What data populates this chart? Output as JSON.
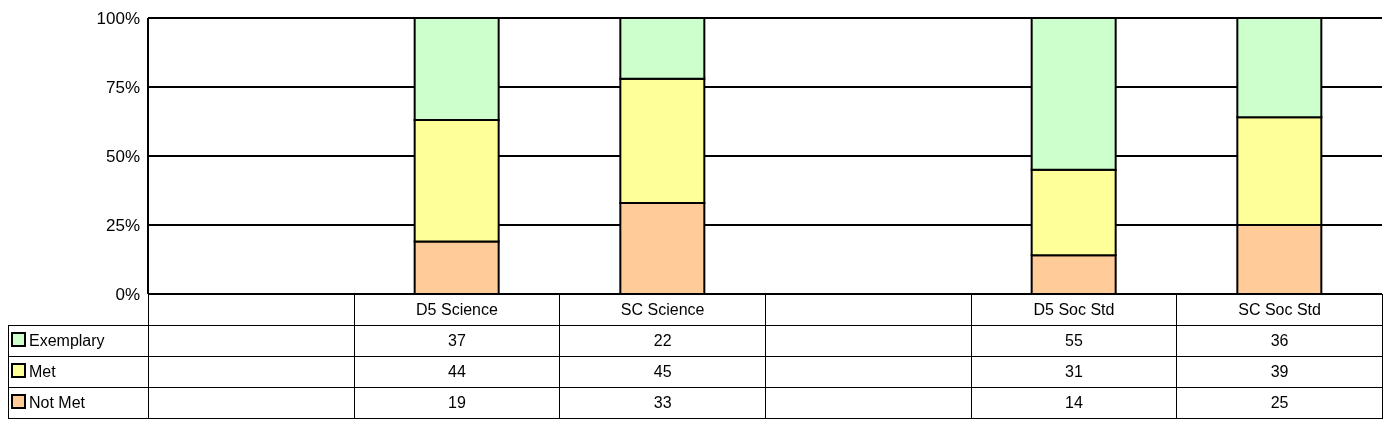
{
  "chart_data": {
    "type": "bar",
    "stacked": true,
    "categories": [
      null,
      "D5 Science",
      "SC Science",
      null,
      "D5 Soc Std",
      "SC Soc Std"
    ],
    "series": [
      {
        "name": "Not Met",
        "color": "#ffcc99",
        "values": [
          null,
          19,
          33,
          null,
          14,
          25
        ]
      },
      {
        "name": "Met",
        "color": "#ffff99",
        "values": [
          null,
          44,
          45,
          null,
          31,
          39
        ]
      },
      {
        "name": "Exemplary",
        "color": "#ccffcc",
        "values": [
          null,
          37,
          22,
          null,
          55,
          36
        ]
      }
    ],
    "ylim": [
      0,
      100
    ],
    "yticks": [
      {
        "value": 0,
        "label": "0%"
      },
      {
        "value": 25,
        "label": "25%"
      },
      {
        "value": 50,
        "label": "50%"
      },
      {
        "value": 75,
        "label": "75%"
      },
      {
        "value": 100,
        "label": "100%"
      }
    ],
    "grid": "y",
    "legend": "bottom left",
    "data_labels": true
  }
}
